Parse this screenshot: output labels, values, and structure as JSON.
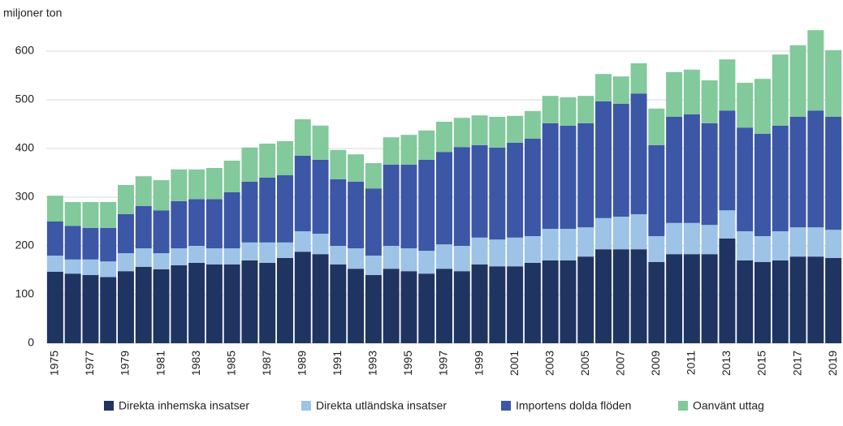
{
  "chart_data": {
    "type": "stacked-bar",
    "y_axis_label": "miljoner ton",
    "categories": [
      "1975",
      null,
      "1977",
      null,
      "1979",
      null,
      "1981",
      null,
      "1983",
      null,
      "1985",
      null,
      "1987",
      null,
      "1989",
      null,
      "1991",
      null,
      "1993",
      null,
      "1995",
      null,
      "1997",
      null,
      "1999",
      null,
      "2001",
      null,
      "2003",
      null,
      "2005",
      null,
      "2007",
      null,
      "2009",
      null,
      "2011",
      null,
      "2013",
      null,
      "2015",
      null,
      "2017",
      null,
      "2019"
    ],
    "series": [
      {
        "name": "Direkta inhemska insatser",
        "color": "#1f3461",
        "values": [
          147,
          143,
          140,
          136,
          148,
          157,
          152,
          160,
          165,
          162,
          162,
          170,
          165,
          175,
          188,
          183,
          162,
          153,
          140,
          153,
          148,
          143,
          153,
          148,
          162,
          158,
          158,
          165,
          170,
          170,
          178,
          193,
          193,
          193,
          167,
          183,
          183,
          183,
          215,
          170,
          167,
          170,
          178,
          178,
          175
        ]
      },
      {
        "name": "Direkta utländska insatser",
        "color": "#9dc3e6",
        "values": [
          33,
          29,
          32,
          32,
          37,
          38,
          33,
          35,
          35,
          33,
          33,
          37,
          42,
          32,
          42,
          42,
          38,
          42,
          40,
          47,
          47,
          47,
          50,
          52,
          55,
          55,
          59,
          55,
          65,
          65,
          60,
          64,
          67,
          72,
          53,
          64,
          64,
          60,
          58,
          60,
          53,
          60,
          60,
          60,
          58
        ]
      },
      {
        "name": "Importens dolda flöden",
        "color": "#3b57a6",
        "values": [
          70,
          69,
          65,
          69,
          80,
          87,
          88,
          97,
          96,
          101,
          115,
          125,
          133,
          138,
          155,
          152,
          137,
          137,
          138,
          167,
          172,
          187,
          190,
          203,
          190,
          189,
          195,
          200,
          217,
          212,
          214,
          240,
          232,
          248,
          187,
          218,
          223,
          209,
          205,
          213,
          210,
          217,
          227,
          240,
          232
        ]
      },
      {
        "name": "Oanvänt uttag",
        "color": "#82c99b",
        "values": [
          53,
          49,
          53,
          53,
          60,
          61,
          62,
          65,
          61,
          64,
          65,
          70,
          70,
          70,
          75,
          70,
          60,
          56,
          52,
          56,
          61,
          60,
          62,
          60,
          61,
          63,
          55,
          57,
          56,
          58,
          56,
          56,
          56,
          62,
          75,
          92,
          92,
          88,
          105,
          92,
          113,
          146,
          147,
          165,
          137
        ]
      }
    ],
    "ylim": [
      0,
      650
    ],
    "yticks": [
      0,
      100,
      200,
      300,
      400,
      500,
      600
    ],
    "grid": true,
    "legend": "bottom"
  }
}
